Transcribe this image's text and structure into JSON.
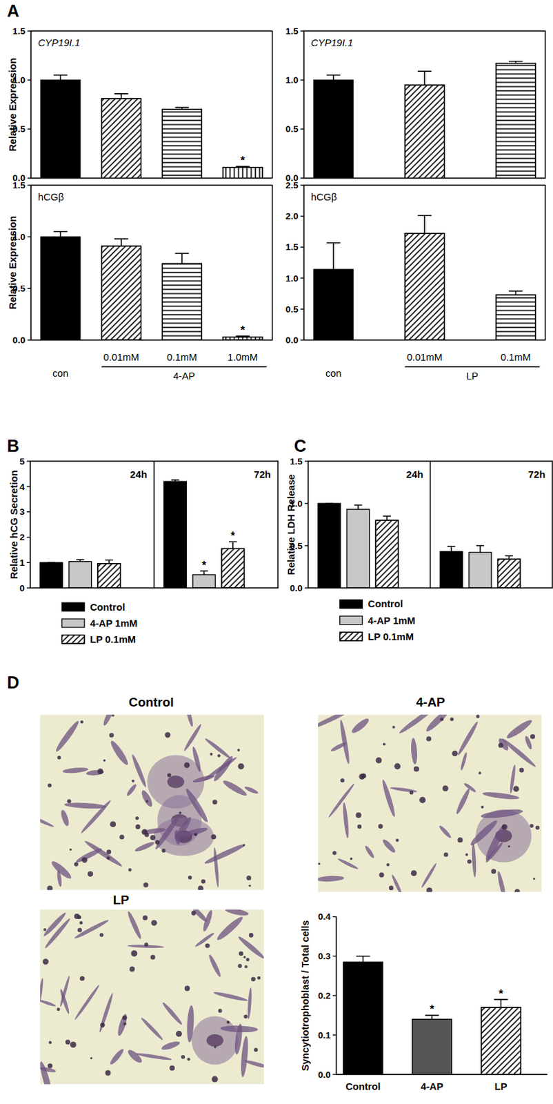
{
  "panel_labels": [
    "A",
    "B",
    "C",
    "D"
  ],
  "images": [
    {
      "title": "Control"
    },
    {
      "title": "4-AP"
    },
    {
      "title": "LP"
    }
  ],
  "chart_data": [
    {
      "type": "bar",
      "title": "CYP19I.1",
      "categories": [
        null,
        null,
        null,
        null
      ],
      "values": [
        1.0,
        0.81,
        0.7,
        0.11
      ],
      "errors": [
        0.05,
        0.05,
        0.02,
        0.01
      ],
      "annotations": [
        null,
        null,
        null,
        "*"
      ],
      "colors": [
        "#000000",
        "#ffffff",
        "#ffffff",
        "#ffffff"
      ],
      "ylabel": "Relative Expression",
      "ylim": [
        0,
        1.5
      ],
      "yticks": [
        {
          "value": 0,
          "label": "0.0"
        },
        {
          "value": 0.5,
          "label": "0.5"
        },
        {
          "value": 1,
          "label": "1.0"
        },
        {
          "value": 1.5,
          "label": "1.5"
        }
      ],
      "tick_labels": "y",
      "grid": false
    },
    {
      "type": "bar",
      "title": "hCGβ",
      "categories": [
        "con",
        "0.01mM",
        "0.1mM",
        "1.0mM"
      ],
      "xlabel": "4-AP",
      "values": [
        1.0,
        0.91,
        0.74,
        0.03
      ],
      "errors": [
        0.05,
        0.07,
        0.1,
        0.01
      ],
      "annotations": [
        null,
        null,
        null,
        "*"
      ],
      "colors": [
        "#000000",
        "#ffffff",
        "#ffffff",
        "#ffffff"
      ],
      "ylabel": "Relative Expression",
      "ylim": [
        0,
        1.5
      ],
      "yticks": [
        {
          "value": 0,
          "label": "0.0"
        },
        {
          "value": 0.5,
          "label": "0.5"
        },
        {
          "value": 1,
          "label": "1.0"
        },
        {
          "value": 1.5,
          "label": "1.5"
        }
      ],
      "grid": false
    },
    {
      "type": "bar",
      "title": "CYP19I.1",
      "categories": [
        null,
        null,
        null
      ],
      "values": [
        1.0,
        0.95,
        1.17
      ],
      "errors": [
        0.05,
        0.14,
        0.02
      ],
      "colors": [
        "#000000",
        "#ffffff",
        "#ffffff"
      ],
      "ylim": [
        0,
        1.5
      ],
      "yticks": [
        {
          "value": 0,
          "label": "0.0"
        },
        {
          "value": 0.5,
          "label": "0.5"
        },
        {
          "value": 1,
          "label": "1.0"
        },
        {
          "value": 1.5,
          "label": "1.5"
        }
      ],
      "tick_labels": "y",
      "grid": false
    },
    {
      "type": "bar",
      "title": "hCGβ",
      "categories": [
        "con",
        "0.01mM",
        "0.1mM"
      ],
      "xlabel": "LP",
      "values": [
        1.14,
        1.72,
        0.73
      ],
      "errors": [
        0.43,
        0.29,
        0.06
      ],
      "colors": [
        "#000000",
        "#ffffff",
        "#ffffff"
      ],
      "ylim": [
        0,
        2.5
      ],
      "yticks": [
        {
          "value": 0,
          "label": "0.0"
        },
        {
          "value": 0.5,
          "label": "0.5"
        },
        {
          "value": 1,
          "label": "1.0"
        },
        {
          "value": 1.5,
          "label": "1.5"
        },
        {
          "value": 2,
          "label": "2.0"
        },
        {
          "value": 2.5,
          "label": "2.5"
        }
      ],
      "grid": false
    },
    {
      "type": "bar",
      "categories": [
        "24h",
        "72h"
      ],
      "series": [
        {
          "name": "Control",
          "color": "#000000",
          "values": [
            1.0,
            4.2
          ],
          "errors": [
            0,
            0.06
          ]
        },
        {
          "name": "4-AP 1mM",
          "color": "#c8c8c8",
          "values": [
            1.04,
            0.52
          ],
          "errors": [
            0.07,
            0.15
          ],
          "annotations": [
            null,
            "*"
          ]
        },
        {
          "name": "LP 0.1mM",
          "color": "#ffffff",
          "values": [
            0.96,
            1.55
          ],
          "errors": [
            0.14,
            0.27
          ],
          "annotations": [
            null,
            "*"
          ]
        }
      ],
      "ylabel": "Relative hCG Secretion",
      "ylim": [
        0,
        5
      ],
      "yticks": [
        0,
        1,
        2,
        3,
        4,
        5
      ],
      "legend": "bottom",
      "grid": false
    },
    {
      "type": "bar",
      "categories": [
        "24h",
        "72h"
      ],
      "series": [
        {
          "name": "Control",
          "color": "#000000",
          "values": [
            1.0,
            0.43
          ],
          "errors": [
            0,
            0.06
          ]
        },
        {
          "name": "4-AP 1mM",
          "color": "#c8c8c8",
          "values": [
            0.93,
            0.42
          ],
          "errors": [
            0.05,
            0.08
          ]
        },
        {
          "name": "LP 0.1mM",
          "color": "#ffffff",
          "values": [
            0.8,
            0.34
          ],
          "errors": [
            0.05,
            0.04
          ]
        }
      ],
      "ylabel": "Relative LDH Release",
      "ylim": [
        0,
        1.5
      ],
      "yticks": [
        {
          "value": 0,
          "label": "0.0"
        },
        {
          "value": 0.5,
          "label": "0.5"
        },
        {
          "value": 1,
          "label": "1.0"
        },
        {
          "value": 1.5,
          "label": "1.5"
        }
      ],
      "legend": "bottom",
      "grid": false
    },
    {
      "type": "bar",
      "categories": [
        "Control",
        "4-AP",
        "LP"
      ],
      "values": [
        0.285,
        0.14,
        0.17
      ],
      "errors": [
        0.015,
        0.01,
        0.02
      ],
      "annotations": [
        null,
        "*",
        "*"
      ],
      "colors": [
        "#000000",
        "#555555",
        "#ffffff"
      ],
      "ylabel": "Syncytiotrophoblast / Total cells",
      "ylim": [
        0,
        0.4
      ],
      "yticks": [
        {
          "value": 0,
          "label": "0.0"
        },
        {
          "value": 0.1,
          "label": "0.1"
        },
        {
          "value": 0.2,
          "label": "0.2"
        },
        {
          "value": 0.3,
          "label": "0.3"
        },
        {
          "value": 0.4,
          "label": "0.4"
        }
      ],
      "grid": false
    }
  ]
}
